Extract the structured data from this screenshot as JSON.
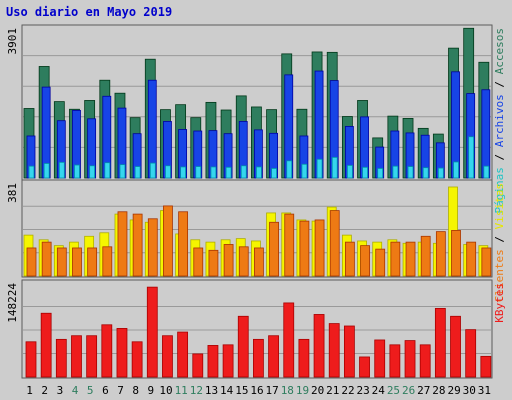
{
  "chart_data": {
    "type": "bar",
    "title": "Uso diario en Mayo 2019",
    "categories": [
      "1",
      "2",
      "3",
      "4",
      "5",
      "6",
      "7",
      "8",
      "9",
      "10",
      "11",
      "12",
      "13",
      "14",
      "15",
      "16",
      "17",
      "18",
      "19",
      "20",
      "21",
      "22",
      "23",
      "24",
      "25",
      "26",
      "27",
      "28",
      "29",
      "30",
      "31"
    ],
    "weekend_days": [
      4,
      5,
      11,
      12,
      18,
      19,
      25,
      26
    ],
    "panels": [
      {
        "name": "hits",
        "max_label": "3901",
        "ylim": [
          0,
          3901
        ],
        "series": [
          {
            "name": "Accesos",
            "color": "#2e7d5e",
            "values": [
              1820,
              2920,
              2000,
              1800,
              2030,
              2560,
              2220,
              1580,
              3110,
              1790,
              1920,
              1580,
              1980,
              1780,
              2150,
              1860,
              1790,
              3250,
              1800,
              3300,
              3290,
              1610,
              2030,
              1050,
              1620,
              1560,
              1300,
              1150,
              3400,
              3920,
              3030
            ]
          },
          {
            "name": "Archivos",
            "color": "#1744e6",
            "values": [
              1100,
              2380,
              1500,
              1770,
              1550,
              2140,
              1830,
              1160,
              2560,
              1480,
              1270,
              1230,
              1240,
              1160,
              1480,
              1260,
              1170,
              2700,
              1100,
              2800,
              2550,
              1350,
              1600,
              810,
              1230,
              1180,
              1120,
              920,
              2780,
              2210,
              2310
            ]
          },
          {
            "name": "Páginas",
            "color": "#36d6ee",
            "values": [
              310,
              380,
              410,
              340,
              320,
              400,
              350,
              300,
              390,
              320,
              290,
              300,
              290,
              280,
              320,
              290,
              250,
              450,
              360,
              490,
              540,
              330,
              280,
              250,
              310,
              300,
              270,
              260,
              420,
              1080,
              310
            ]
          }
        ]
      },
      {
        "name": "visits",
        "max_label": "381",
        "ylim": [
          0,
          381
        ],
        "series": [
          {
            "name": "Visitas",
            "color": "#f5f500",
            "values": [
              175,
              155,
              130,
              145,
              170,
              185,
              265,
              240,
              230,
              280,
              180,
              155,
              145,
              155,
              160,
              150,
              270,
              270,
              240,
              235,
              295,
              175,
              150,
              145,
              155,
              140,
              145,
              140,
              381,
              135,
              130
            ]
          },
          {
            "name": "Clientes",
            "color": "#ee7a14",
            "values": [
              120,
              145,
              120,
              120,
              120,
              125,
              275,
              265,
              245,
              300,
              275,
              120,
              110,
              135,
              125,
              120,
              230,
              265,
              235,
              240,
              280,
              145,
              130,
              115,
              145,
              145,
              170,
              190,
              195,
              145,
              120
            ]
          }
        ]
      },
      {
        "name": "kbytes",
        "max_label": "148224",
        "ylim": [
          0,
          148224
        ],
        "series": [
          {
            "name": "KBytes",
            "color": "#ee1c1c",
            "values": [
              58000,
              105000,
              62000,
              68000,
              68000,
              86000,
              80000,
              58000,
              148000,
              68000,
              74000,
              38000,
              52000,
              53000,
              100000,
              62000,
              68000,
              122000,
              62000,
              103000,
              88000,
              84000,
              33000,
              61000,
              53000,
              60000,
              53000,
              113000,
              100000,
              78000,
              34000
            ]
          }
        ]
      }
    ],
    "legend": [
      {
        "panel": "hits",
        "labels": [
          "Páginas",
          "Archivos",
          "Accesos"
        ],
        "colors": [
          "#1ec4c4",
          "#1744e6",
          "#2e7d5e"
        ]
      },
      {
        "panel": "visits",
        "labels": [
          "Clientes",
          "Visitas"
        ],
        "colors": [
          "#ee7a14",
          "#f5f500"
        ]
      },
      {
        "panel": "kbytes",
        "labels": [
          "KBytes"
        ],
        "colors": [
          "#ee1c1c"
        ]
      }
    ],
    "grid": true,
    "legend_position": "right"
  }
}
